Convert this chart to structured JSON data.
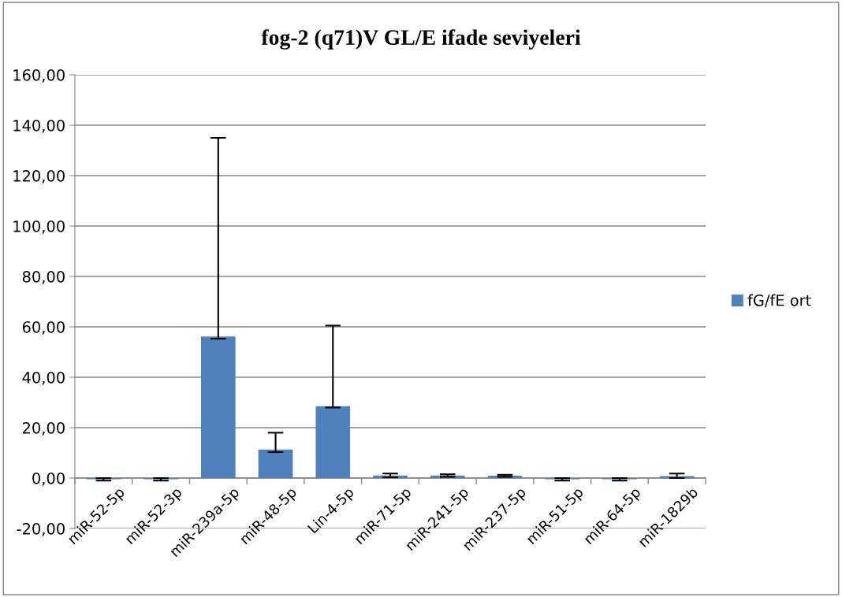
{
  "chart_data": {
    "type": "bar",
    "title": "fog-2 (q71)V GL/E ifade seviyeleri",
    "categories": [
      "miR-52-5p",
      "miR-52-3p",
      "miR-239a-5p",
      "miR-48-5p",
      "Lin-4-5p",
      "miR-71-5p",
      "miR-241-5p",
      "miR-237-5p",
      "miR-51-5p",
      "miR-64-5p",
      "miR-1829b"
    ],
    "series": [
      {
        "name": "fG/fE ort",
        "color": "#4f81bd",
        "values": [
          -0.5,
          -0.5,
          56.2,
          11.3,
          28.5,
          1.0,
          1.0,
          0.9,
          -0.5,
          -0.5,
          0.8
        ],
        "errors": [
          0.5,
          0.5,
          [
            55.3,
            135.0
          ],
          [
            10.3,
            18.0
          ],
          [
            28.0,
            60.5
          ],
          [
            0.3,
            1.8
          ],
          [
            0.5,
            1.5
          ],
          [
            0.5,
            1.3
          ],
          0.5,
          0.5,
          [
            0.0,
            1.8
          ]
        ]
      }
    ],
    "ylim": [
      -20,
      160
    ],
    "yticks": [
      {
        "value": -20,
        "label": "-20,00"
      },
      {
        "value": 0,
        "label": "0,00"
      },
      {
        "value": 20,
        "label": "20,00"
      },
      {
        "value": 40,
        "label": "40,00"
      },
      {
        "value": 60,
        "label": "60,00"
      },
      {
        "value": 80,
        "label": "80,00"
      },
      {
        "value": 100,
        "label": "100,00"
      },
      {
        "value": 120,
        "label": "120,00"
      },
      {
        "value": 140,
        "label": "140,00"
      },
      {
        "value": 160,
        "label": "160,00"
      }
    ],
    "grid": "y",
    "legend": "right"
  }
}
